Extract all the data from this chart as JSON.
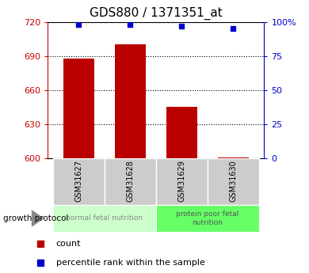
{
  "title": "GDS880 / 1371351_at",
  "samples": [
    "GSM31627",
    "GSM31628",
    "GSM31629",
    "GSM31630"
  ],
  "counts": [
    688,
    700,
    645,
    601
  ],
  "percentile_ranks": [
    98,
    98,
    97,
    95
  ],
  "ylim_left": [
    600,
    720
  ],
  "ylim_right": [
    0,
    100
  ],
  "yticks_left": [
    600,
    630,
    660,
    690,
    720
  ],
  "yticks_right": [
    0,
    25,
    50,
    75,
    100
  ],
  "groups": [
    {
      "label": "normal fetal nutrition",
      "color": "#ccffcc",
      "indices": [
        0,
        1
      ]
    },
    {
      "label": "protein poor fetal\nnutrition",
      "color": "#66ff66",
      "indices": [
        2,
        3
      ]
    }
  ],
  "bar_color": "#bb0000",
  "dot_color": "#0000cc",
  "bar_width": 0.6,
  "left_tick_color": "#cc0000",
  "right_tick_color": "#0000cc",
  "protocol_label": "growth protocol",
  "legend_count_label": "count",
  "legend_percentile_label": "percentile rank within the sample",
  "sample_box_color": "#cccccc",
  "gridline_ticks": [
    630,
    660,
    690
  ]
}
